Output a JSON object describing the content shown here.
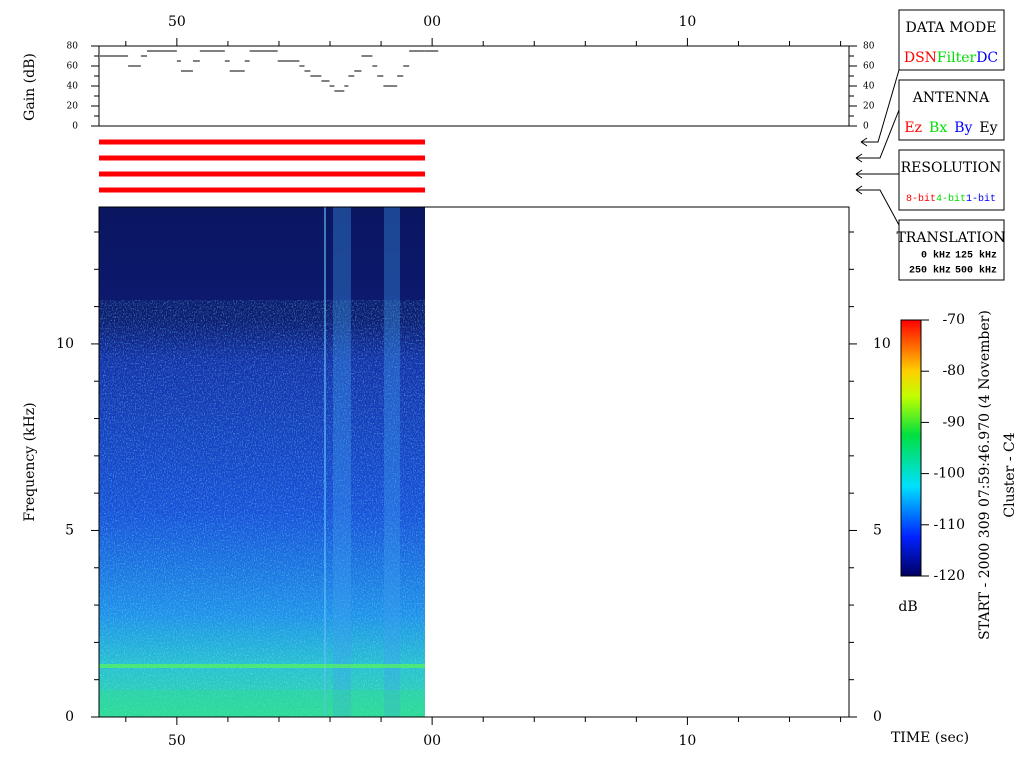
{
  "chart_data": [
    {
      "type": "line",
      "ylabel": "Gain (dB)",
      "x": [
        46.99,
        48.09,
        48.59,
        48.83,
        50.0,
        50.16,
        50.63,
        50.9,
        51.88,
        52.07,
        52.66,
        52.85,
        53.95,
        54.8,
        55.0,
        55.23,
        55.66,
        55.98,
        56.17,
        56.56,
        56.72,
        56.95,
        57.23,
        57.66,
        57.85,
        58.09,
        58.63,
        58.87,
        59.1,
        59.69
      ],
      "values": [
        70,
        60,
        70,
        75,
        65,
        55,
        65,
        75,
        65,
        55,
        65,
        75,
        65,
        60,
        55,
        50,
        45,
        40,
        35,
        40,
        50,
        55,
        70,
        60,
        50,
        40,
        50,
        60,
        75,
        75
      ],
      "color": "#000000",
      "xlim": [
        46.95,
        76.33
      ],
      "xticks": [
        50,
        {
          "value": 60,
          "label": "00"
        },
        {
          "value": 70,
          "label": "10"
        }
      ],
      "xminorticks": [
        48,
        52,
        54,
        56,
        58,
        62,
        64,
        66,
        68,
        72,
        74,
        76
      ],
      "ylim": [
        0,
        80
      ],
      "yticks": [
        0,
        20,
        40,
        60,
        80
      ],
      "yminorticks": [
        10,
        30,
        50,
        70
      ]
    },
    {
      "type": "heatmap",
      "xlabel": "TIME (sec)",
      "ylabel": "Frequency (kHz)",
      "xlim": [
        46.95,
        76.33
      ],
      "xticks": [
        50,
        {
          "value": 60,
          "label": "00"
        },
        {
          "value": 70,
          "label": "10"
        }
      ],
      "xminorticks": [
        48,
        52,
        54,
        56,
        58,
        62,
        64,
        66,
        68,
        72,
        74,
        76
      ],
      "ylim": [
        0,
        13.67
      ],
      "yticks": [
        0,
        5,
        10
      ],
      "yminorticks": [
        1,
        2,
        3,
        4,
        6,
        7,
        8,
        9,
        11,
        12,
        13
      ],
      "colorbar": {
        "label": "dB",
        "lim": [
          -120,
          -70
        ],
        "ticks": [
          -120,
          -110,
          -100,
          -90,
          -80,
          -70
        ]
      }
    }
  ],
  "legend_boxes": [
    {
      "title": "DATA MODE",
      "items": [
        {
          "label": "DSN",
          "color": "#ff0000"
        },
        {
          "label": "Filter",
          "color": "#00e000"
        },
        {
          "label": "DC",
          "color": "#0000ff"
        }
      ]
    },
    {
      "title": "ANTENNA",
      "items": [
        {
          "label": "Ez",
          "color": "#ff0000"
        },
        {
          "label": "Bx",
          "color": "#00e000"
        },
        {
          "label": "By",
          "color": "#0000ff"
        },
        {
          "label": "Ey",
          "color": "#000000"
        }
      ]
    },
    {
      "title": "RESOLUTION",
      "items": [
        {
          "label": "8-bit",
          "color": "#ff0000"
        },
        {
          "label": "4-bit",
          "color": "#00e000"
        },
        {
          "label": "1-bit",
          "color": "#0000ff"
        }
      ]
    },
    {
      "title": "TRANSLATION",
      "items": [
        {
          "label": "0 kHz",
          "color": "#ff0000"
        },
        {
          "label": "125 kHz",
          "color": "#00e000"
        },
        {
          "label": "250 kHz",
          "color": "#0000ff"
        },
        {
          "label": "500 kHz",
          "color": "#000000"
        }
      ]
    }
  ],
  "annotations": [
    "START - 2000 309 07:59:46.970 (4 November)",
    "Cluster - C4"
  ]
}
